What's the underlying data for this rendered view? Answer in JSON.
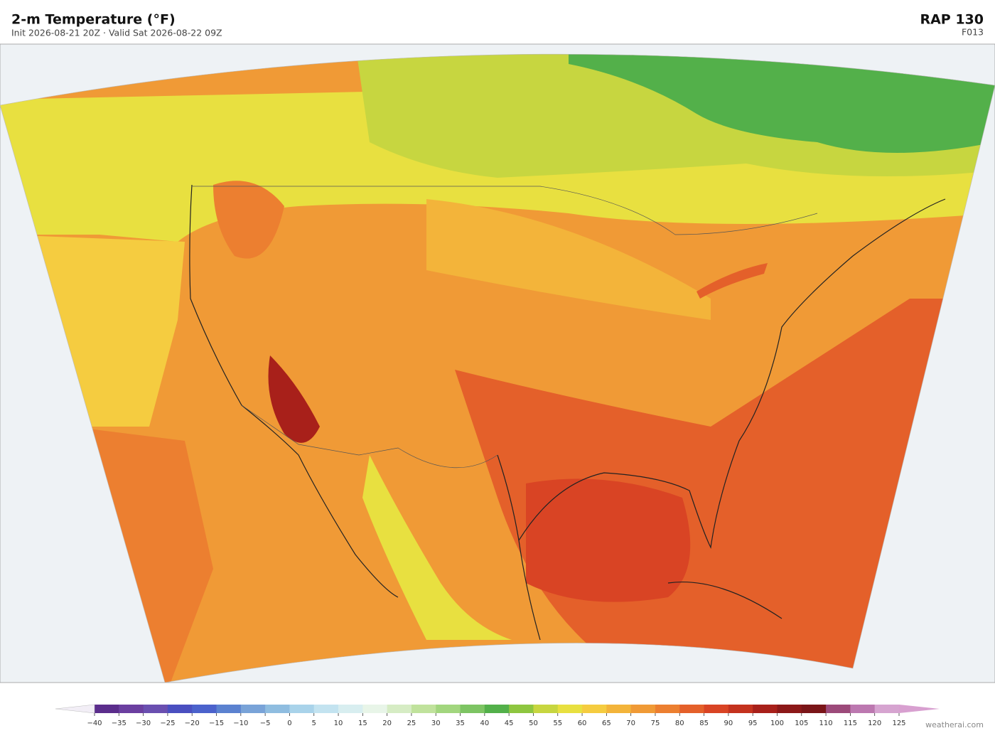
{
  "header": {
    "title": "2-m Temperature  (°F)",
    "subtitle": "Init 2026-08-21 20Z  ·  Valid Sat 2026-08-22 09Z",
    "model": "RAP  130",
    "forecast_hour": "F013"
  },
  "colorbar": {
    "ticks": [
      {
        "value": -40,
        "label": "−40"
      },
      {
        "value": -35,
        "label": "−35"
      },
      {
        "value": -30,
        "label": "−30"
      },
      {
        "value": -25,
        "label": "−25"
      },
      {
        "value": -20,
        "label": "−20"
      },
      {
        "value": -15,
        "label": "−15"
      },
      {
        "value": -10,
        "label": "−10"
      },
      {
        "value": -5,
        "label": "−5"
      },
      0,
      5,
      10,
      15,
      20,
      25,
      30,
      35,
      40,
      45,
      50,
      55,
      60,
      65,
      70,
      75,
      80,
      85,
      90,
      95,
      100,
      105,
      110,
      115,
      120,
      125
    ],
    "colors": [
      "#5b2d8c",
      "#6b3fa0",
      "#6a4fb0",
      "#4a4fc0",
      "#4b62cc",
      "#5b82d0",
      "#79a3d8",
      "#8fbde0",
      "#a9d3ea",
      "#c3e3f0",
      "#d8eef0",
      "#e8f5e8",
      "#d6ecc4",
      "#c0e29c",
      "#a2d67e",
      "#7dc463",
      "#53b04a",
      "#8ec640",
      "#c7d640",
      "#e8e040",
      "#f5cc40",
      "#f3b43a",
      "#f09a36",
      "#ec7f30",
      "#e4602a",
      "#d94424",
      "#c4321e",
      "#a8201a",
      "#8c1818",
      "#7a1518",
      "#9c4a7a",
      "#bc78b0",
      "#d6a4d0"
    ],
    "extend_colors": [
      "#f2eef6",
      "#d8a0d0"
    ]
  },
  "watermark": "weatherai.com"
}
